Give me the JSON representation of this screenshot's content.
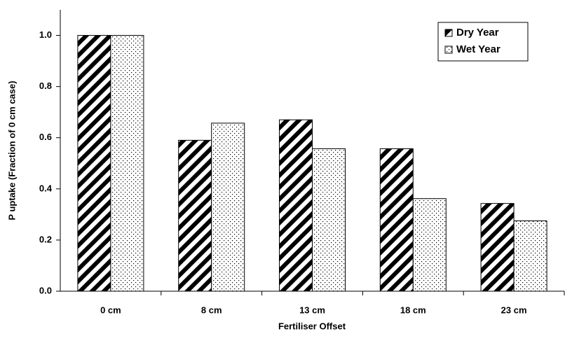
{
  "chart_data": {
    "type": "bar",
    "x_label": "Fertiliser Offset",
    "y_label": "P uptake (Fraction of 0 cm case)",
    "categories": [
      "0 cm",
      "8 cm",
      "13 cm",
      "18 cm",
      "23 cm"
    ],
    "series": [
      {
        "name": "Dry Year",
        "color": "#000000",
        "pattern": "stripes",
        "values": [
          1.0,
          0.59,
          0.67,
          0.557,
          0.343
        ]
      },
      {
        "name": "Wet Year",
        "color": "#000000",
        "pattern": "dots",
        "values": [
          1.0,
          0.657,
          0.557,
          0.362,
          0.275
        ]
      }
    ],
    "ylim": [
      0,
      1.1
    ],
    "yticks": [
      {
        "value": 0,
        "label": "0.0"
      },
      {
        "value": 0.2,
        "label": "0.2"
      },
      {
        "value": 0.4,
        "label": "0.4"
      },
      {
        "value": 0.6,
        "label": "0.6"
      },
      {
        "value": 0.8,
        "label": "0.8"
      },
      {
        "value": 1.0,
        "label": "1.0"
      }
    ],
    "grid": false,
    "legend": "top-right"
  }
}
